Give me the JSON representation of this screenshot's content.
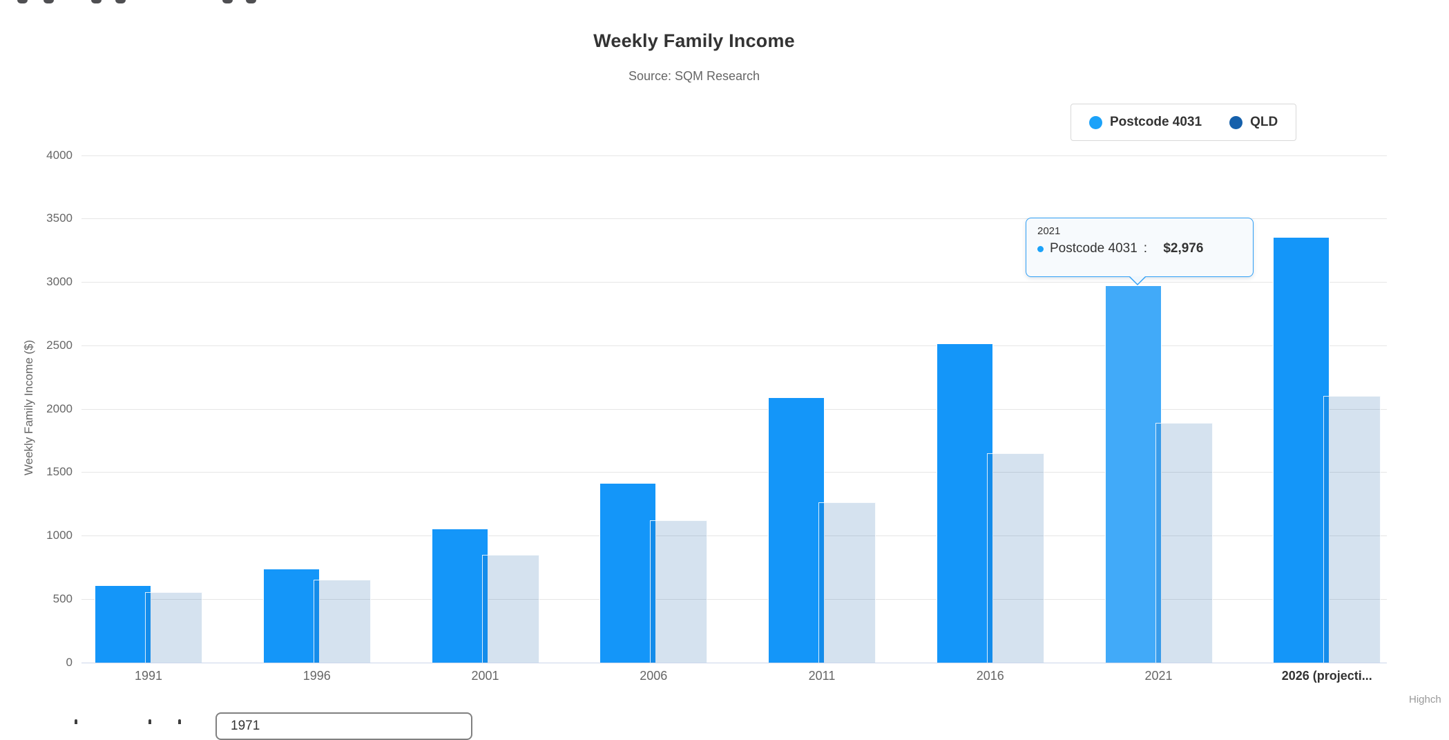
{
  "chart_data": {
    "type": "bar",
    "title": "Weekly Family Income",
    "subtitle": "Source: SQM Research",
    "ylabel": "Weekly Family Income ($)",
    "ylim": [
      0,
      4000
    ],
    "ytick_step": 500,
    "grid": true,
    "legend_position": "top-right",
    "categories": [
      "1991",
      "1996",
      "2001",
      "2006",
      "2011",
      "2016",
      "2021",
      "2026 (projecti..."
    ],
    "series": [
      {
        "name": "Postcode 4031",
        "color": "#1496f9",
        "hover_color": "#41aaf9",
        "values": [
          608,
          741,
          1053,
          1414,
          2089,
          2516,
          2976,
          3355
        ]
      },
      {
        "name": "QLD",
        "color": "#1560ab",
        "fill_rgba": "rgba(21,95,169,0.18)",
        "values": [
          556,
          651,
          849,
          1121,
          1264,
          1651,
          1890,
          2102
        ]
      }
    ],
    "hovered_point": {
      "series": "Postcode 4031",
      "category_index": 6
    }
  },
  "tooltip": {
    "header": "2021",
    "series_name": "Postcode 4031",
    "separator": ": ",
    "value": "$2,976",
    "dot_color": "#1ba2f9"
  },
  "legend": {
    "items": [
      {
        "label": "Postcode 4031",
        "color": "#1ba2f9"
      },
      {
        "label": "QLD",
        "color": "#1560ab"
      }
    ]
  },
  "credit": {
    "visible_text": "Highch"
  },
  "bottom_bar": {
    "select_value": "1971"
  }
}
